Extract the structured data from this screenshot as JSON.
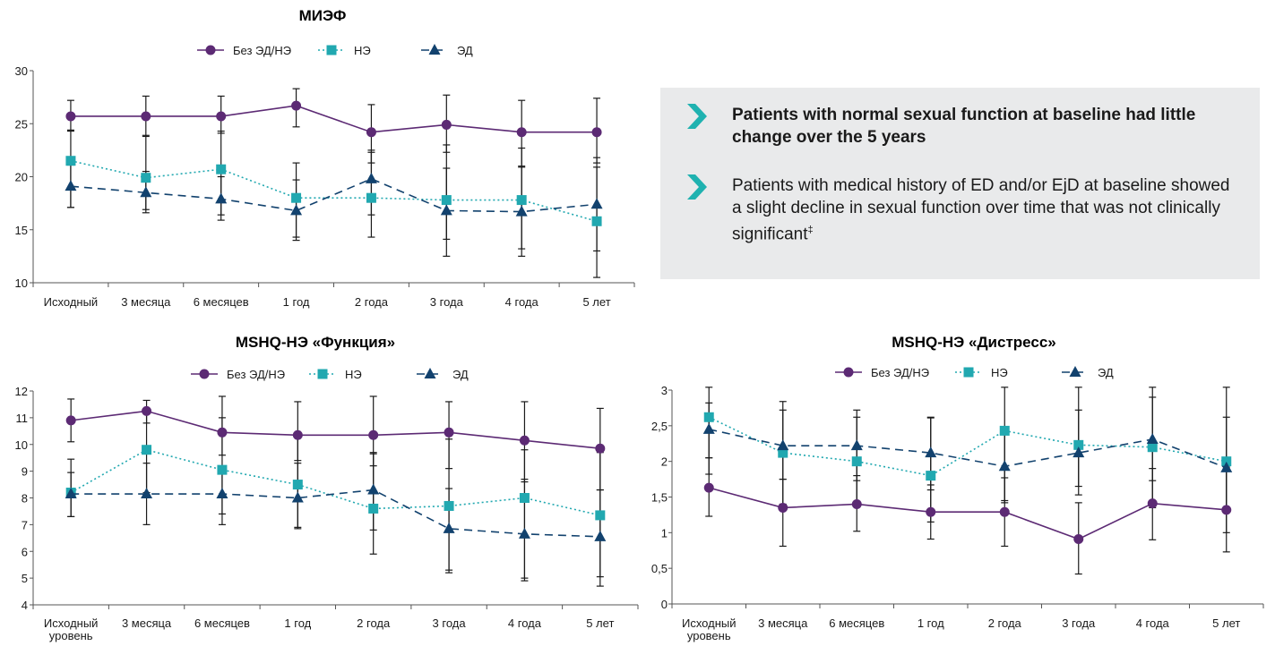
{
  "colors": {
    "none": "#5c2a74",
    "ne": "#21a8b0",
    "ed": "#12426e",
    "err": "#1a1a1a",
    "panel": "#e9eaeb",
    "accent": "#1fb2b0"
  },
  "legend": [
    "Без ЭД/НЭ",
    "НЭ",
    "ЭД"
  ],
  "panel": {
    "bullet1": "Patients with normal sexual function at baseline had little change over the 5 years",
    "bullet2": "Patients with medical history of ED and/or EjD at baseline showed a slight decline in sexual function over time that was not clinically significant",
    "bullet2_mark": "‡"
  },
  "chart_data": [
    {
      "type": "line",
      "title": "МИЭФ",
      "categories": [
        "Исходный",
        "3 месяца",
        "6 месяцев",
        "1 год",
        "2 года",
        "3 года",
        "4 года",
        "5 лет"
      ],
      "ylim": [
        10,
        30
      ],
      "yticks": [
        "10",
        "15",
        "20",
        "25",
        "30"
      ],
      "legend_position": "top",
      "series": [
        {
          "name": "Без ЭД/НЭ",
          "values": [
            25.7,
            25.7,
            25.7,
            26.7,
            24.2,
            24.9,
            24.2,
            24.2
          ],
          "error_low": [
            24.4,
            23.8,
            24.1,
            24.7,
            21.3,
            22.3,
            20.9,
            21.3
          ],
          "error_high": [
            27.2,
            27.6,
            27.6,
            28.3,
            26.8,
            27.7,
            27.2,
            27.4
          ]
        },
        {
          "name": "НЭ",
          "values": [
            21.5,
            19.9,
            20.7,
            18.0,
            18.0,
            17.8,
            17.8,
            15.8
          ],
          "error_low": [
            17.1,
            16.9,
            16.4,
            14.0,
            14.3,
            12.5,
            12.5,
            10.5
          ],
          "error_high": [
            24.3,
            23.9,
            24.3,
            21.3,
            22.3,
            23.0,
            22.7,
            20.9
          ]
        },
        {
          "name": "ЭД",
          "values": [
            19.1,
            18.5,
            17.9,
            16.8,
            19.8,
            16.8,
            16.7,
            17.4
          ],
          "error_low": [
            17.1,
            16.6,
            15.9,
            14.3,
            16.4,
            14.1,
            13.2,
            13.0
          ],
          "error_high": [
            21.1,
            20.5,
            20.0,
            19.7,
            22.5,
            20.8,
            21.0,
            21.8
          ]
        }
      ]
    },
    {
      "type": "line",
      "title": "MSHQ-НЭ «Функция»",
      "categories": [
        "Исходный уровень",
        "3 месяца",
        "6 месяцев",
        "1 год",
        "2 года",
        "3 года",
        "4 года",
        "5 лет"
      ],
      "ylim": [
        4,
        12
      ],
      "yticks": [
        "4",
        "5",
        "6",
        "7",
        "8",
        "9",
        "10",
        "11",
        "12"
      ],
      "legend_position": "top",
      "series": [
        {
          "name": "Без ЭД/НЭ",
          "values": [
            10.9,
            11.25,
            10.45,
            10.35,
            10.35,
            10.45,
            10.15,
            9.85
          ],
          "error_low": [
            10.1,
            10.8,
            9.6,
            9.4,
            9.2,
            9.1,
            8.6,
            8.3
          ],
          "error_high": [
            11.7,
            11.65,
            11.8,
            11.6,
            11.8,
            11.6,
            11.6,
            11.35
          ]
        },
        {
          "name": "НЭ",
          "values": [
            8.2,
            9.8,
            9.05,
            8.5,
            7.6,
            7.7,
            8.0,
            7.35
          ],
          "error_low": [
            7.3,
            8.2,
            7.0,
            6.9,
            5.9,
            5.3,
            4.9,
            4.7
          ],
          "error_high": [
            9.45,
            11.2,
            11.0,
            10.4,
            9.7,
            10.2,
            9.8,
            9.7
          ]
        },
        {
          "name": "ЭД",
          "values": [
            8.15,
            8.15,
            8.15,
            8.0,
            8.3,
            6.85,
            6.65,
            6.55
          ],
          "error_low": [
            7.3,
            7.0,
            7.4,
            6.85,
            6.8,
            5.2,
            5.0,
            5.05
          ],
          "error_high": [
            8.95,
            9.3,
            8.9,
            9.3,
            9.65,
            8.35,
            8.7,
            8.3
          ]
        }
      ]
    },
    {
      "type": "line",
      "title": "MSHQ-НЭ «Дистресс»",
      "categories": [
        "Исходный уровень",
        "3 месяца",
        "6 месяцев",
        "1 год",
        "2 года",
        "3 года",
        "4 года",
        "5 лет"
      ],
      "ylim": [
        0,
        3
      ],
      "yticks": [
        "0",
        "0,5",
        "1",
        "1,5",
        "2",
        "2,5",
        "3"
      ],
      "legend_position": "top",
      "series": [
        {
          "name": "Без ЭД/НЭ",
          "values": [
            1.63,
            1.35,
            1.4,
            1.29,
            1.29,
            0.91,
            1.41,
            1.32
          ],
          "error_low": [
            1.23,
            0.81,
            1.02,
            0.91,
            0.81,
            0.42,
            0.9,
            0.73
          ],
          "error_high": [
            2.05,
            1.75,
            1.8,
            1.67,
            1.77,
            1.42,
            1.9,
            1.92
          ]
        },
        {
          "name": "НЭ",
          "values": [
            2.62,
            2.12,
            2.0,
            1.8,
            2.43,
            2.23,
            2.2,
            2.0
          ],
          "error_low": [
            2.05,
            1.4,
            1.4,
            1.15,
            1.45,
            1.65,
            1.35,
            1.0
          ],
          "error_high": [
            3.04,
            2.84,
            2.62,
            2.61,
            3.04,
            3.04,
            3.04,
            3.04
          ]
        },
        {
          "name": "ЭД",
          "values": [
            2.45,
            2.22,
            2.22,
            2.12,
            1.93,
            2.12,
            2.31,
            1.91
          ],
          "error_low": [
            1.82,
            1.75,
            1.73,
            1.6,
            1.42,
            1.53,
            1.73,
            1.3
          ],
          "error_high": [
            2.82,
            2.72,
            2.72,
            2.62,
            2.45,
            2.72,
            2.9,
            2.62
          ]
        }
      ]
    }
  ]
}
